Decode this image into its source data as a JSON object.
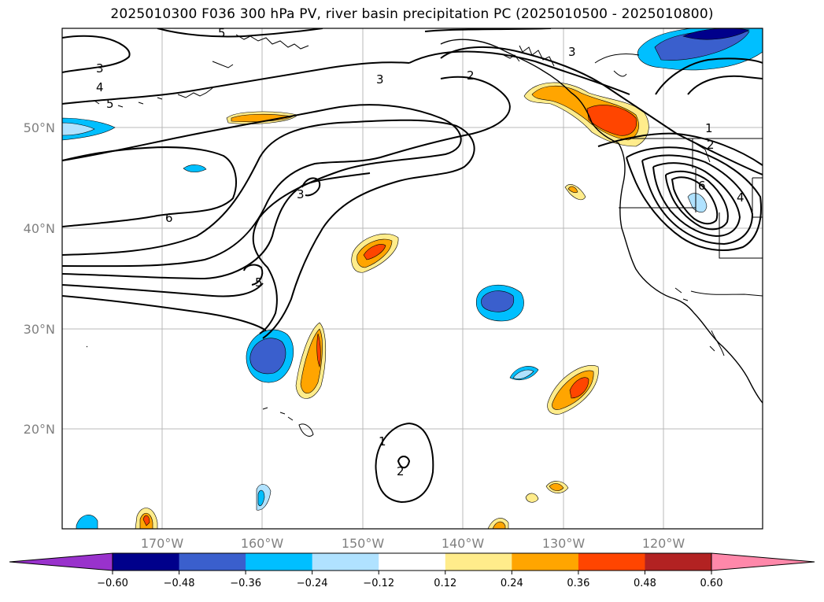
{
  "title": "2025010300 F036 300 hPa PV, river basin precipitation PC (2025010500 - 2025010800)",
  "map": {
    "latitude_labels": [
      "50°N",
      "40°N",
      "30°N",
      "20°N"
    ],
    "longitude_labels": [
      "170°W",
      "160°W",
      "150°W",
      "140°W",
      "130°W",
      "120°W"
    ],
    "contour_labels": [
      "5",
      "3",
      "4",
      "5",
      "3",
      "2",
      "3",
      "1",
      "2",
      "6",
      "4",
      "3",
      "6",
      "5",
      "1",
      "2"
    ]
  },
  "colorbar": {
    "tick_labels": [
      "−0.60",
      "−0.48",
      "−0.36",
      "−0.24",
      "−0.12",
      "0.12",
      "0.24",
      "0.36",
      "0.48",
      "0.60"
    ],
    "colors": [
      "#9932CC",
      "#00008B",
      "#3A5FCD",
      "#00BFFF",
      "#B0E2FF",
      "#FFFFFF",
      "#FFEC8B",
      "#FFA500",
      "#FF4500",
      "#B22222",
      "#FF88AA"
    ]
  }
}
